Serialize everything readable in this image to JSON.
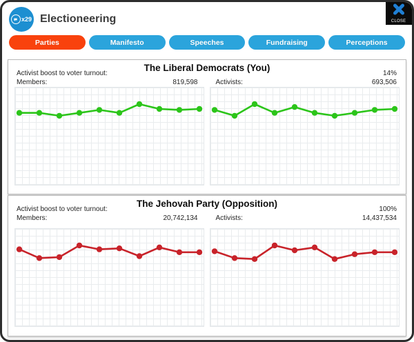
{
  "window": {
    "title": "Electioneering",
    "multiplier_badge": "x29",
    "close_button": {
      "label": "CLOSE"
    }
  },
  "tabs": [
    {
      "label": "Parties",
      "active": true
    },
    {
      "label": "Manifesto",
      "active": false
    },
    {
      "label": "Speeches",
      "active": false
    },
    {
      "label": "Fundraising",
      "active": false
    },
    {
      "label": "Perceptions",
      "active": false
    }
  ],
  "colors": {
    "tab_active_bg": "#f9420d",
    "tab_inactive_bg": "#2ba4dc",
    "header_icon_bg": "#1d8fd1",
    "close_x": "#1f7fd4",
    "green_series": "#2cc51a",
    "red_series": "#c8232a",
    "grid_line": "#e9ecee"
  },
  "panels": [
    {
      "title": "The Liberal Democrats (You)",
      "rows": {
        "boost_label": "Activist boost to voter turnout:",
        "boost_value": "14%",
        "members_label": "Members:",
        "members_value": "819,598",
        "activists_label": "Activists:",
        "activists_value": "693,506"
      }
    },
    {
      "title": "The Jehovah Party (Opposition)",
      "rows": {
        "boost_label": "Activist boost to voter turnout:",
        "boost_value": "100%",
        "members_label": "Members:",
        "members_value": "20,742,134",
        "activists_label": "Activists:",
        "activists_value": "14,437,534"
      }
    }
  ],
  "chart_data": [
    {
      "type": "line",
      "title": "",
      "subject": "Liberal Democrats members trend",
      "color": "#2cc51a",
      "grid": true,
      "legend": "none",
      "x_labels": [],
      "ylim": [
        0,
        100
      ],
      "series": [
        {
          "name": "Members",
          "values_pct": [
            74,
            74,
            71,
            74,
            77,
            74,
            83,
            78,
            77,
            78
          ]
        }
      ],
      "note": "unlabeled sparkline; values estimated as % of chart height"
    },
    {
      "type": "line",
      "title": "",
      "subject": "Liberal Democrats activists trend",
      "color": "#2cc51a",
      "grid": true,
      "legend": "none",
      "x_labels": [],
      "ylim": [
        0,
        100
      ],
      "series": [
        {
          "name": "Activists",
          "values_pct": [
            77,
            71,
            83,
            74,
            80,
            74,
            71,
            74,
            77,
            78
          ]
        }
      ],
      "note": "unlabeled sparkline; values estimated as % of chart height"
    },
    {
      "type": "line",
      "title": "",
      "subject": "Jehovah Party members trend",
      "color": "#c8232a",
      "grid": true,
      "legend": "none",
      "x_labels": [],
      "ylim": [
        0,
        100
      ],
      "series": [
        {
          "name": "Members",
          "values_pct": [
            79,
            70,
            71,
            83,
            79,
            80,
            72,
            81,
            76,
            76
          ]
        }
      ],
      "note": "unlabeled sparkline; values estimated as % of chart height"
    },
    {
      "type": "line",
      "title": "",
      "subject": "Jehovah Party activists trend",
      "color": "#c8232a",
      "grid": true,
      "legend": "none",
      "x_labels": [],
      "ylim": [
        0,
        100
      ],
      "series": [
        {
          "name": "Activists",
          "values_pct": [
            77,
            70,
            69,
            83,
            78,
            81,
            69,
            74,
            76,
            76
          ]
        }
      ],
      "note": "unlabeled sparkline; values estimated as % of chart height"
    }
  ]
}
